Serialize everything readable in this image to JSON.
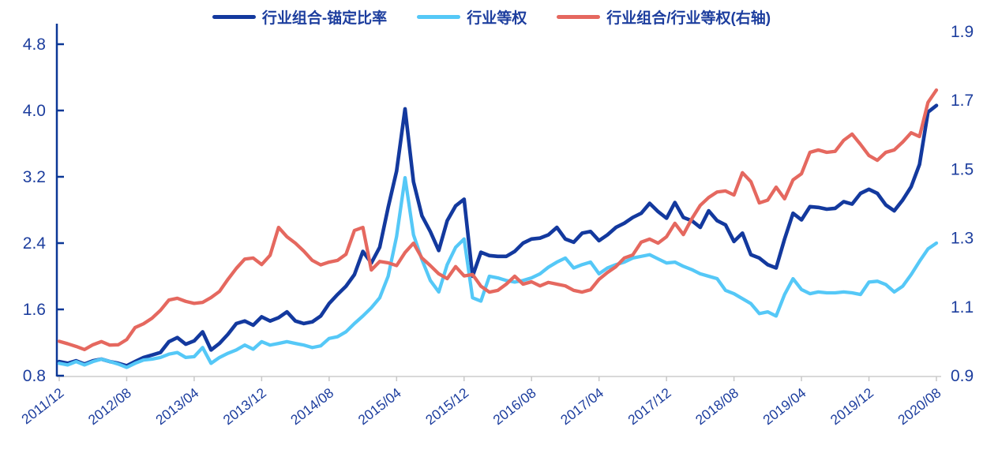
{
  "colors": {
    "series_dark_blue": "#13399e",
    "series_light_blue": "#55c8f7",
    "series_red": "#e5685f",
    "axis_text": "#1d3e9e",
    "left_axis_line": "#0b3796",
    "bottom_axis_line": "#d9d9d9",
    "bottom_tick": "#c8c8c8",
    "background": "#ffffff"
  },
  "chart_data": {
    "type": "line",
    "title": "",
    "x_frequency": "monthly",
    "x_start": "2011/12",
    "x_end": "2020/08",
    "x_tick_every": 8,
    "x_tick_labels": [
      "2011/12",
      "2012/08",
      "2013/04",
      "2013/12",
      "2014/08",
      "2015/04",
      "2015/12",
      "2016/08",
      "2017/04",
      "2017/12",
      "2018/08",
      "2019/04",
      "2019/12",
      "2020/08"
    ],
    "axes": {
      "left": {
        "range": [
          0.8,
          4.8
        ],
        "ticks": [
          0.8,
          1.6,
          2.4,
          3.2,
          4.0,
          4.8
        ]
      },
      "right": {
        "range": [
          0.9,
          1.9
        ],
        "ticks": [
          0.9,
          1.1,
          1.3,
          1.5,
          1.7,
          1.9
        ]
      }
    },
    "legend_position": "top-center",
    "grid": false,
    "series": [
      {
        "name": "行业组合-锚定比率",
        "key": "industry-combo-anchored-ratio",
        "axis": "left",
        "color": "#13399e",
        "stroke_width": 4.6,
        "values": [
          0.97,
          0.95,
          0.98,
          0.94,
          0.98,
          1.0,
          0.97,
          0.95,
          0.92,
          0.97,
          1.02,
          1.05,
          1.08,
          1.21,
          1.26,
          1.18,
          1.22,
          1.33,
          1.11,
          1.19,
          1.3,
          1.43,
          1.46,
          1.41,
          1.51,
          1.46,
          1.5,
          1.57,
          1.46,
          1.43,
          1.45,
          1.52,
          1.67,
          1.78,
          1.88,
          2.02,
          2.3,
          2.16,
          2.35,
          2.83,
          3.27,
          4.02,
          3.14,
          2.73,
          2.54,
          2.31,
          2.67,
          2.85,
          2.93,
          2.0,
          2.29,
          2.25,
          2.24,
          2.24,
          2.3,
          2.4,
          2.45,
          2.46,
          2.5,
          2.59,
          2.45,
          2.41,
          2.52,
          2.54,
          2.43,
          2.5,
          2.59,
          2.64,
          2.71,
          2.76,
          2.88,
          2.78,
          2.7,
          2.89,
          2.71,
          2.67,
          2.59,
          2.79,
          2.67,
          2.62,
          2.42,
          2.52,
          2.26,
          2.22,
          2.14,
          2.1,
          2.45,
          2.76,
          2.68,
          2.84,
          2.83,
          2.81,
          2.82,
          2.9,
          2.87,
          3.0,
          3.05,
          3.0,
          2.86,
          2.79,
          2.92,
          3.08,
          3.35,
          3.98,
          4.06
        ]
      },
      {
        "name": "行业等权",
        "key": "industry-equal-weight",
        "axis": "left",
        "color": "#55c8f7",
        "stroke_width": 4.3,
        "values": [
          0.95,
          0.93,
          0.97,
          0.93,
          0.97,
          1.0,
          0.97,
          0.94,
          0.9,
          0.95,
          0.99,
          1.0,
          1.02,
          1.06,
          1.08,
          1.02,
          1.03,
          1.14,
          0.95,
          1.02,
          1.07,
          1.11,
          1.17,
          1.12,
          1.21,
          1.17,
          1.19,
          1.21,
          1.19,
          1.17,
          1.14,
          1.16,
          1.25,
          1.27,
          1.33,
          1.43,
          1.52,
          1.62,
          1.74,
          2.0,
          2.48,
          3.19,
          2.5,
          2.2,
          1.95,
          1.81,
          2.14,
          2.35,
          2.45,
          1.74,
          1.7,
          2.0,
          1.98,
          1.95,
          1.93,
          1.95,
          1.98,
          2.03,
          2.11,
          2.17,
          2.22,
          2.1,
          2.14,
          2.17,
          2.03,
          2.1,
          2.14,
          2.17,
          2.22,
          2.24,
          2.26,
          2.21,
          2.16,
          2.17,
          2.12,
          2.08,
          2.03,
          2.0,
          1.97,
          1.83,
          1.79,
          1.73,
          1.67,
          1.55,
          1.57,
          1.52,
          1.78,
          1.97,
          1.84,
          1.79,
          1.81,
          1.8,
          1.8,
          1.81,
          1.8,
          1.78,
          1.93,
          1.94,
          1.9,
          1.81,
          1.88,
          2.02,
          2.18,
          2.33,
          2.4
        ]
      },
      {
        "name": "行业组合/行业等权(右轴)",
        "key": "combo-over-equal-right-axis",
        "axis": "right",
        "color": "#e5685f",
        "stroke_width": 4.3,
        "values": [
          1.0,
          0.993,
          0.985,
          0.976,
          0.99,
          0.999,
          0.989,
          0.99,
          1.005,
          1.04,
          1.051,
          1.067,
          1.09,
          1.12,
          1.125,
          1.116,
          1.11,
          1.113,
          1.127,
          1.145,
          1.18,
          1.212,
          1.239,
          1.242,
          1.223,
          1.25,
          1.331,
          1.304,
          1.285,
          1.262,
          1.235,
          1.222,
          1.23,
          1.235,
          1.253,
          1.322,
          1.331,
          1.207,
          1.232,
          1.228,
          1.22,
          1.258,
          1.285,
          1.242,
          1.22,
          1.196,
          1.182,
          1.217,
          1.19,
          1.194,
          1.16,
          1.143,
          1.148,
          1.166,
          1.189,
          1.166,
          1.173,
          1.161,
          1.171,
          1.166,
          1.161,
          1.148,
          1.143,
          1.15,
          1.18,
          1.2,
          1.217,
          1.242,
          1.251,
          1.288,
          1.297,
          1.285,
          1.304,
          1.343,
          1.31,
          1.356,
          1.395,
          1.418,
          1.434,
          1.437,
          1.425,
          1.49,
          1.464,
          1.402,
          1.41,
          1.448,
          1.414,
          1.469,
          1.487,
          1.549,
          1.556,
          1.549,
          1.552,
          1.584,
          1.602,
          1.572,
          1.54,
          1.526,
          1.549,
          1.556,
          1.579,
          1.606,
          1.595,
          1.694,
          1.73
        ]
      }
    ]
  }
}
